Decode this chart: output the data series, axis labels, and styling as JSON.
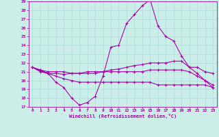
{
  "background_color": "#cceee8",
  "grid_color": "#aadddd",
  "line_color": "#aa00aa",
  "xlabel": "Windchill (Refroidissement éolien,°C)",
  "xlim": [
    -0.5,
    23.5
  ],
  "ylim": [
    17,
    29
  ],
  "yticks": [
    17,
    18,
    19,
    20,
    21,
    22,
    23,
    24,
    25,
    26,
    27,
    28,
    29
  ],
  "xticks": [
    0,
    1,
    2,
    3,
    4,
    5,
    6,
    7,
    8,
    9,
    10,
    11,
    12,
    13,
    14,
    15,
    16,
    17,
    18,
    19,
    20,
    21,
    22,
    23
  ],
  "lines": [
    {
      "x": [
        0,
        1,
        2,
        3,
        4,
        5,
        6,
        7,
        8,
        9,
        10,
        11,
        12,
        13,
        14,
        15,
        16,
        17,
        18,
        19,
        20,
        21,
        22,
        23
      ],
      "y": [
        21.5,
        21.2,
        21.0,
        21.0,
        21.0,
        20.8,
        20.8,
        20.8,
        20.8,
        21.0,
        21.2,
        21.3,
        21.5,
        21.7,
        21.8,
        22.0,
        22.0,
        22.0,
        22.2,
        22.2,
        21.5,
        21.5,
        21.0,
        20.8
      ]
    },
    {
      "x": [
        0,
        1,
        2,
        3,
        4,
        5,
        6,
        7,
        8,
        9,
        10,
        11,
        12,
        13,
        14,
        15,
        16,
        17,
        18,
        19,
        20,
        21,
        22,
        23
      ],
      "y": [
        21.5,
        21.2,
        20.8,
        19.8,
        19.2,
        18.0,
        17.2,
        17.5,
        18.2,
        20.5,
        23.8,
        24.0,
        26.5,
        27.5,
        28.5,
        29.2,
        26.2,
        25.0,
        24.5,
        22.8,
        21.5,
        20.8,
        20.0,
        19.2
      ]
    },
    {
      "x": [
        0,
        1,
        2,
        3,
        4,
        5,
        6,
        7,
        8,
        9,
        10,
        11,
        12,
        13,
        14,
        15,
        16,
        17,
        18,
        19,
        20,
        21,
        22,
        23
      ],
      "y": [
        21.5,
        21.1,
        20.8,
        20.8,
        20.7,
        20.8,
        20.8,
        21.0,
        21.0,
        21.0,
        21.0,
        21.0,
        21.0,
        21.0,
        21.0,
        21.2,
        21.2,
        21.2,
        21.2,
        21.2,
        21.0,
        20.5,
        20.0,
        19.5
      ]
    },
    {
      "x": [
        0,
        1,
        2,
        3,
        4,
        5,
        6,
        7,
        8,
        9,
        10,
        11,
        12,
        13,
        14,
        15,
        16,
        17,
        18,
        19,
        20,
        21,
        22,
        23
      ],
      "y": [
        21.5,
        21.0,
        20.8,
        20.5,
        20.2,
        20.0,
        19.8,
        19.8,
        19.8,
        19.8,
        19.8,
        19.8,
        19.8,
        19.8,
        19.8,
        19.8,
        19.5,
        19.5,
        19.5,
        19.5,
        19.5,
        19.5,
        19.5,
        19.2
      ]
    }
  ]
}
